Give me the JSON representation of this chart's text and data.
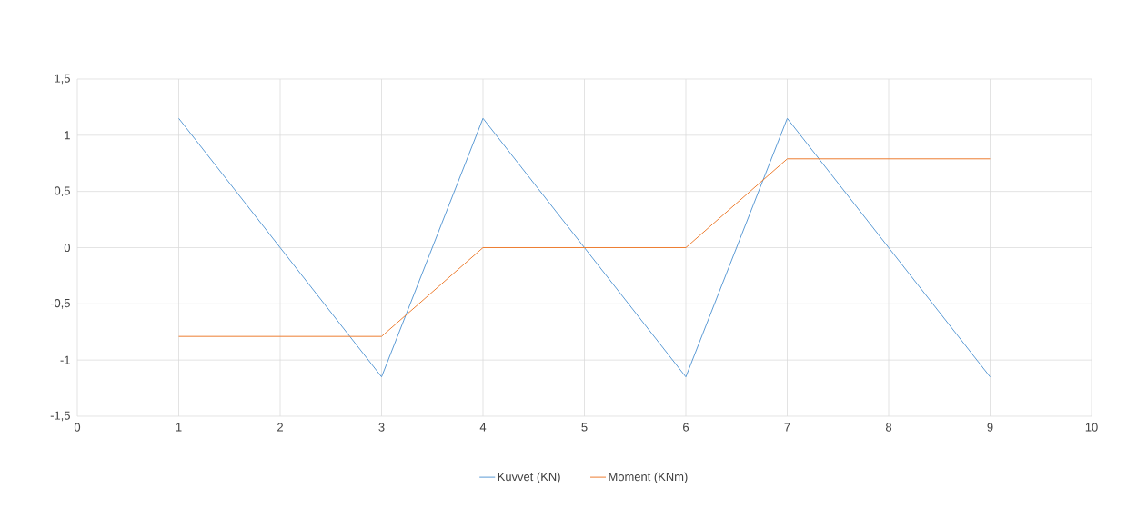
{
  "chart_data": {
    "type": "line",
    "x": [
      1,
      2,
      3,
      4,
      5,
      6,
      7,
      8,
      9
    ],
    "series": [
      {
        "name": "Kuvvet (KN)",
        "color": "#5b9bd5",
        "values": [
          1.15,
          0,
          -1.15,
          1.15,
          0,
          -1.15,
          1.15,
          0,
          -1.15
        ]
      },
      {
        "name": "Moment (KNm)",
        "color": "#ed7d31",
        "values": [
          -0.79,
          -0.79,
          -0.79,
          0,
          0,
          0,
          0.79,
          0.79,
          0.79
        ]
      }
    ],
    "xlim": [
      0,
      10
    ],
    "ylim": [
      -1.5,
      1.5
    ],
    "xticks": [
      0,
      1,
      2,
      3,
      4,
      5,
      6,
      7,
      8,
      9,
      10
    ],
    "yticks": [
      {
        "value": -1.5,
        "label": "-1,5"
      },
      {
        "value": -1,
        "label": "-1"
      },
      {
        "value": -0.5,
        "label": "-0,5"
      },
      {
        "value": 0,
        "label": "0"
      },
      {
        "value": 0.5,
        "label": "0,5"
      },
      {
        "value": 1,
        "label": "1"
      },
      {
        "value": 1.5,
        "label": "1,5"
      }
    ],
    "grid": true,
    "legend": "bottom",
    "marker": "none",
    "line_style": "solid"
  }
}
